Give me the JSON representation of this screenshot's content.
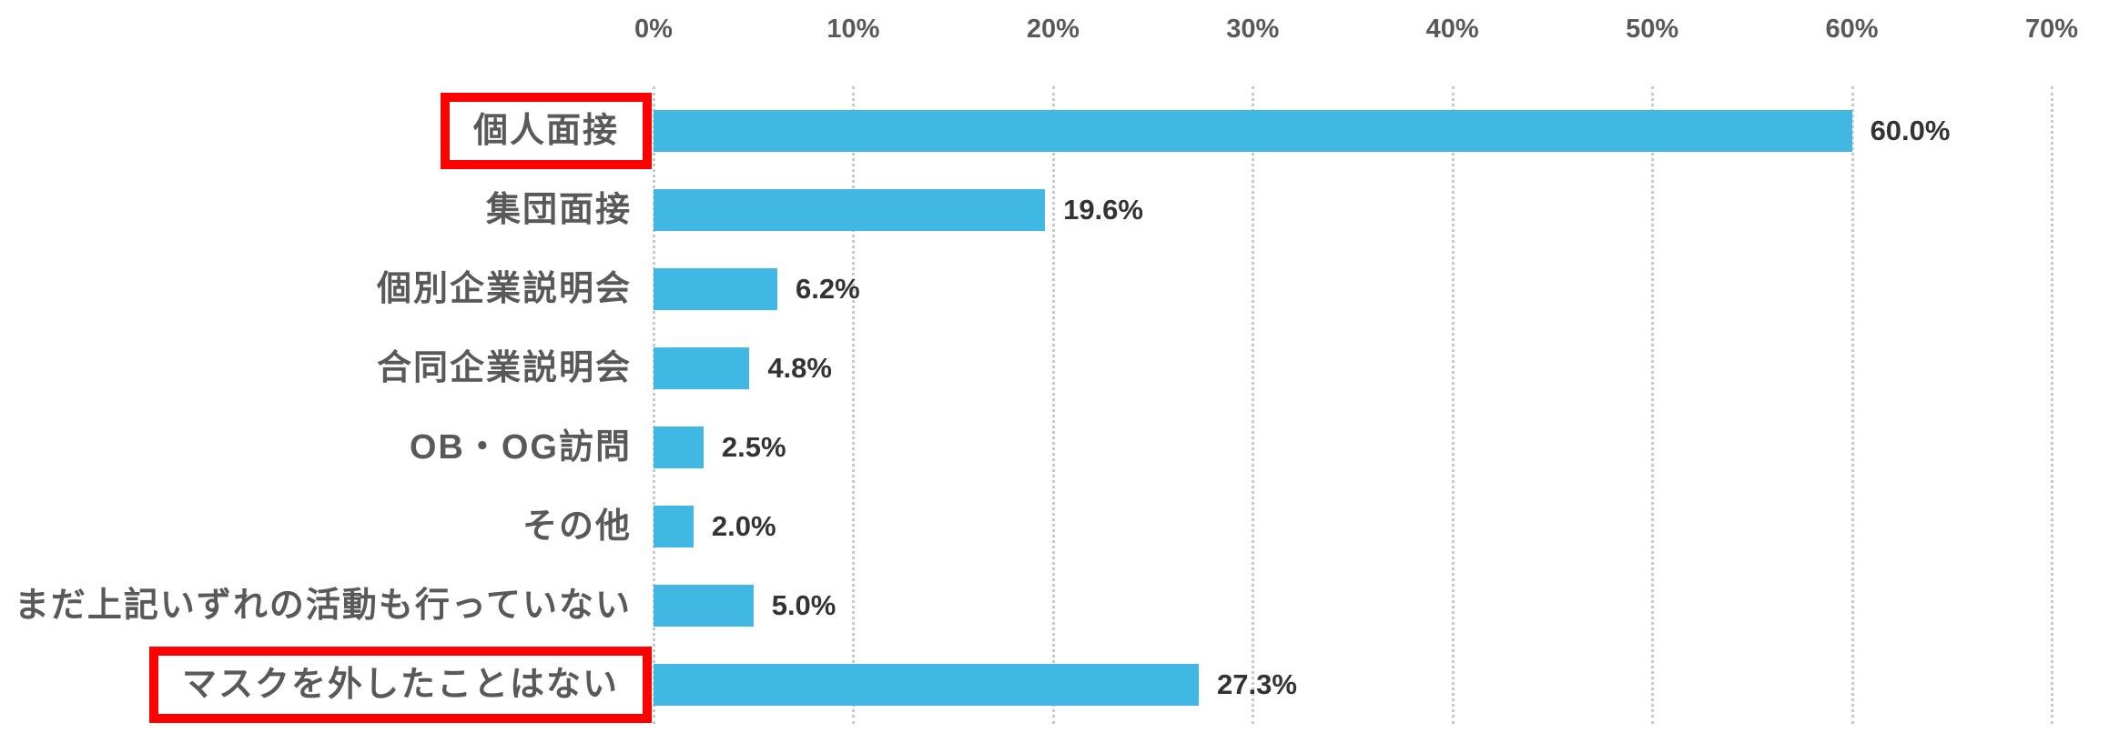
{
  "chart_data": {
    "type": "bar",
    "orientation": "horizontal",
    "title": "",
    "x_axis": {
      "position": "top",
      "min": 0,
      "max": 70,
      "unit": "%",
      "ticks": [
        "0%",
        "10%",
        "20%",
        "30%",
        "40%",
        "50%",
        "60%",
        "70%"
      ]
    },
    "grid": "vertical dashed gridlines at each 10% tick",
    "categories": [
      "個人面接",
      "集団面接",
      "個別企業説明会",
      "合同企業説明会",
      "OB・OG訪問",
      "その他",
      "まだ上記いずれの活動も行っていない",
      "マスクを外したことはない"
    ],
    "values": [
      60.0,
      19.6,
      6.2,
      4.8,
      2.5,
      2.0,
      5.0,
      27.3
    ],
    "data_labels": [
      "60.0%",
      "19.6%",
      "6.2%",
      "4.8%",
      "2.5%",
      "2.0%",
      "5.0%",
      "27.3%"
    ],
    "highlighted": [
      true,
      false,
      false,
      false,
      false,
      false,
      false,
      true
    ],
    "highlight_style": "thick red rectangle around category label",
    "legend": "none"
  },
  "colors": {
    "background": "#ffffff",
    "bar": "#41b7e3",
    "gridline": "#c9c9c9",
    "tick_label": "#595959",
    "category_label": "#595959",
    "value_label": "#333333",
    "highlight_box": "#fe0000"
  }
}
